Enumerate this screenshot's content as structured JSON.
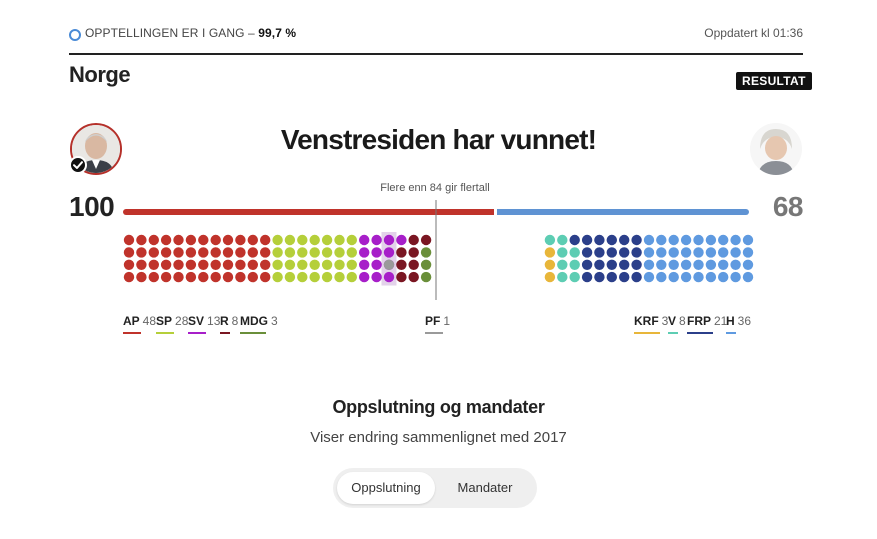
{
  "status": {
    "label": "OPPTELLINGEN ER I GANG",
    "sep": " – ",
    "percent": "99,7 %"
  },
  "updated": "Oppdatert kl 01:36",
  "region": "Norge",
  "result_badge": "RESULTAT",
  "headline": "Venstresiden har vunnet!",
  "majority_note": "Flere enn 84 gir flertall",
  "left_total": "100",
  "right_total": "68",
  "icons": {
    "winner_check": "check-icon",
    "left_avatar": "avatar-portrait-left",
    "right_avatar": "avatar-portrait-right"
  },
  "chart_data": {
    "type": "bar",
    "total_seats": 169,
    "majority_threshold": 85,
    "blocks": [
      {
        "name": "left",
        "seats": 100,
        "color": "#c0332b"
      },
      {
        "name": "right",
        "seats": 68,
        "color": "#5f93d3"
      }
    ],
    "parties": [
      {
        "abbr": "AP",
        "seats": 48,
        "color": "#c0332b",
        "side": "left"
      },
      {
        "abbr": "SP",
        "seats": 28,
        "color": "#b5cf3a",
        "side": "left"
      },
      {
        "abbr": "SV",
        "seats": 13,
        "color": "#a71fc9",
        "side": "left"
      },
      {
        "abbr": "R",
        "seats": 8,
        "color": "#7a1622",
        "side": "left"
      },
      {
        "abbr": "MDG",
        "seats": 3,
        "color": "#6a8f3a",
        "side": "left"
      },
      {
        "abbr": "PF",
        "seats": 1,
        "color": "#9a9a9a",
        "side": "center"
      },
      {
        "abbr": "KRF",
        "seats": 3,
        "color": "#e8b63a",
        "side": "right"
      },
      {
        "abbr": "V",
        "seats": 8,
        "color": "#5dcdb3",
        "side": "right"
      },
      {
        "abbr": "FRP",
        "seats": 21,
        "color": "#2b3f8a",
        "side": "right"
      },
      {
        "abbr": "H",
        "seats": 36,
        "color": "#5f9ae0",
        "side": "right"
      }
    ]
  },
  "section": {
    "title": "Oppslutning og mandater",
    "subtitle": "Viser endring sammenlignet med 2017"
  },
  "toggle": {
    "options": [
      "Oppslutning",
      "Mandater"
    ],
    "selected": "Oppslutning"
  }
}
